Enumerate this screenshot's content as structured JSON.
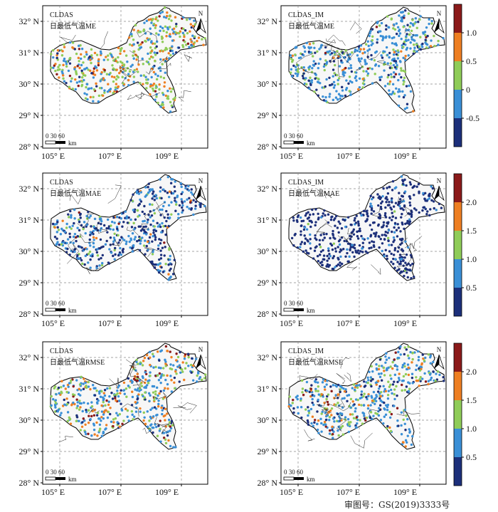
{
  "figure": {
    "approval_note": "审图号：GS(2019)3333号",
    "scale_labels": [
      "0 30 60",
      "km"
    ],
    "north_label": "N",
    "lon_ticks": [
      "105° E",
      "107° E",
      "109° E"
    ],
    "lat_ticks": [
      "32° N",
      "31° N",
      "30° N",
      "29° N",
      "28° N"
    ],
    "panels": [
      {
        "product": "CLDAS",
        "metric": "日最低气温ME"
      },
      {
        "product": "CLDAS_IM",
        "metric": "日最低气温ME"
      },
      {
        "product": "CLDAS",
        "metric": "日最低气温MAE"
      },
      {
        "product": "CLDAS_IM",
        "metric": "日最低气温MAE"
      },
      {
        "product": "CLDAS",
        "metric": "日最低气温RMSE"
      },
      {
        "product": "CLDAS_IM",
        "metric": "日最低气温RMSE"
      }
    ],
    "colorbars": [
      {
        "labels": [
          "1.0",
          "0.5",
          "0",
          "-0.5"
        ],
        "colors": [
          "#8b1a1a",
          "#ee7f22",
          "#8fcc58",
          "#3a8fd6",
          "#1c2f7a"
        ]
      },
      {
        "labels": [
          "2.0",
          "1.5",
          "1.0",
          "0.5"
        ],
        "colors": [
          "#8b1a1a",
          "#ee7f22",
          "#8fcc58",
          "#3a8fd6",
          "#1c2f7a"
        ]
      },
      {
        "labels": [
          "2.0",
          "1.5",
          "1.0",
          "0.5"
        ],
        "colors": [
          "#8b1a1a",
          "#ee7f22",
          "#8fcc58",
          "#3a8fd6",
          "#1c2f7a"
        ]
      }
    ]
  }
}
